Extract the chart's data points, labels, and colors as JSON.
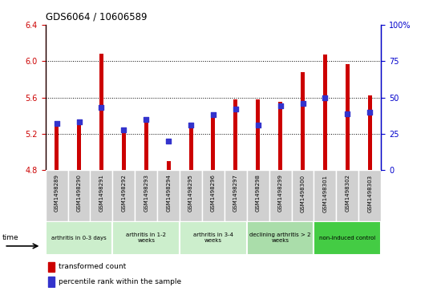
{
  "title": "GDS6064 / 10606589",
  "samples": [
    "GSM1498289",
    "GSM1498290",
    "GSM1498291",
    "GSM1498292",
    "GSM1498293",
    "GSM1498294",
    "GSM1498295",
    "GSM1498296",
    "GSM1498297",
    "GSM1498298",
    "GSM1498299",
    "GSM1498300",
    "GSM1498301",
    "GSM1498302",
    "GSM1498303"
  ],
  "transformed_count": [
    5.28,
    5.32,
    6.08,
    5.27,
    5.34,
    4.9,
    5.28,
    5.42,
    5.58,
    5.58,
    5.55,
    5.88,
    6.07,
    5.97,
    5.62
  ],
  "percentile_rank": [
    32,
    33,
    43,
    28,
    35,
    20,
    31,
    38,
    42,
    31,
    44,
    46,
    50,
    39,
    40
  ],
  "bar_base": 4.8,
  "ylim_left": [
    4.8,
    6.4
  ],
  "ylim_right": [
    0,
    100
  ],
  "yticks_left": [
    4.8,
    5.2,
    5.6,
    6.0,
    6.4
  ],
  "yticks_right": [
    0,
    25,
    50,
    75,
    100
  ],
  "bar_color": "#cc0000",
  "marker_color": "#3333cc",
  "groups": [
    {
      "label": "arthritis in 0-3 days",
      "start": 0,
      "end": 3,
      "color": "#cceecc"
    },
    {
      "label": "arthritis in 1-2\nweeks",
      "start": 3,
      "end": 6,
      "color": "#cceecc"
    },
    {
      "label": "arthritis in 3-4\nweeks",
      "start": 6,
      "end": 9,
      "color": "#cceecc"
    },
    {
      "label": "declining arthritis > 2\nweeks",
      "start": 9,
      "end": 12,
      "color": "#aaddaa"
    },
    {
      "label": "non-induced control",
      "start": 12,
      "end": 15,
      "color": "#44cc44"
    }
  ],
  "legend_red_label": "transformed count",
  "legend_blue_label": "percentile rank within the sample",
  "time_label": "time",
  "left_axis_color": "#cc0000",
  "right_axis_color": "#0000cc",
  "tick_label_fontsize": 6,
  "bar_width": 0.18,
  "marker_size": 14
}
